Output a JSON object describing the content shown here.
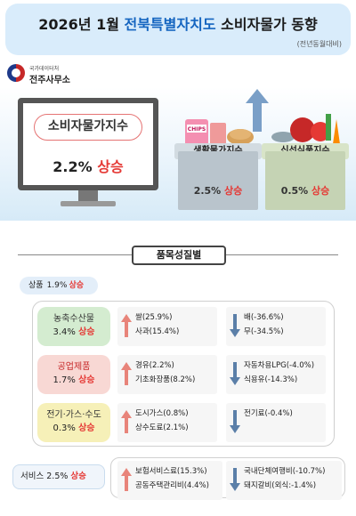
{
  "header": {
    "title_part1": "2026년 1월 ",
    "title_highlight": "전북특별자치도",
    "title_part2": " 소비자물가 동향",
    "subtitle": "(전년동월대비)"
  },
  "logo": {
    "org_small": "국가데이터처",
    "org_main": "전주사무소"
  },
  "cpi": {
    "label": "소비자물가지수",
    "value": "2.2%",
    "direction": "상승"
  },
  "living": {
    "label": "생활물가지수",
    "value": "2.5%",
    "direction": "상승"
  },
  "fresh": {
    "label": "신선식품지수",
    "value": "0.5%",
    "direction": "상승"
  },
  "section_title": "품목성질별",
  "goods": {
    "label": "상품",
    "value": "1.9%",
    "direction": "상승"
  },
  "categories": [
    {
      "name": "농축수산물",
      "value": "3.4%",
      "direction": "상승",
      "up_items": [
        "쌀(25.9%)",
        "사과(15.4%)"
      ],
      "down_items": [
        "배(-36.6%)",
        "무(-34.5%)"
      ]
    },
    {
      "name": "공업제품",
      "value": "1.7%",
      "direction": "상승",
      "up_items": [
        "경유(2.2%)",
        "기초화장품(8.2%)"
      ],
      "down_items": [
        "자동차용LPG(-4.0%)",
        "식용유(-14.3%)"
      ]
    },
    {
      "name": "전기·가스·수도",
      "value": "0.3%",
      "direction": "상승",
      "up_items": [
        "도시가스(0.8%)",
        "상수도료(2.1%)"
      ],
      "down_items": [
        "전기료(-0.4%)"
      ]
    }
  ],
  "services": {
    "label": "서비스",
    "value": "2.5%",
    "direction": "상승",
    "up_items": [
      "보험서비스료(15.3%)",
      "공동주택관리비(4.4%)"
    ],
    "down_items": [
      "국내단체여행비(-10.7%)",
      "돼지갈비(외식:-1.4%)"
    ]
  },
  "colors": {
    "up": "#e53935",
    "accent": "#1565c0",
    "down_arrow": "#5b7fa8",
    "up_arrow": "#e8847a"
  }
}
